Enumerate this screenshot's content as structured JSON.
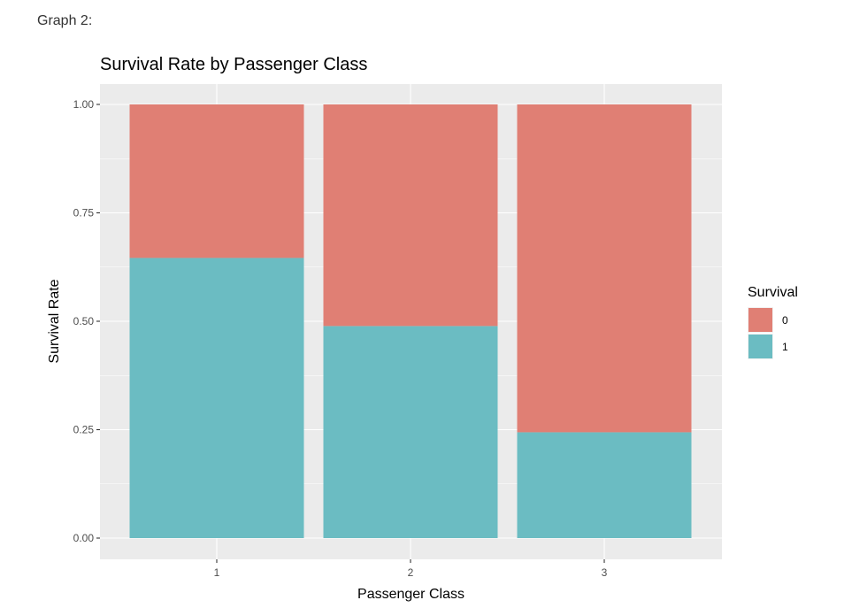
{
  "caption": "Graph 2:",
  "colors": {
    "panel_bg": "#ebebeb",
    "grid": "#ffffff",
    "survival_0": "#e07f74",
    "survival_1": "#6bbcc2"
  },
  "chart_data": {
    "type": "bar",
    "stacked": true,
    "title": "Survival Rate by Passenger Class",
    "xlabel": "Passenger Class",
    "ylabel": "Survival Rate",
    "categories": [
      "1",
      "2",
      "3"
    ],
    "ylim": [
      0,
      1
    ],
    "yticks": [
      "0.00",
      "0.25",
      "0.50",
      "0.75",
      "1.00"
    ],
    "grid": true,
    "legend": {
      "title": "Survival",
      "position": "right"
    },
    "series": [
      {
        "name": "1",
        "color": "#6bbcc2",
        "values": [
          0.646,
          0.489,
          0.244
        ]
      },
      {
        "name": "0",
        "color": "#e07f74",
        "values": [
          0.354,
          0.511,
          0.756
        ]
      }
    ]
  }
}
